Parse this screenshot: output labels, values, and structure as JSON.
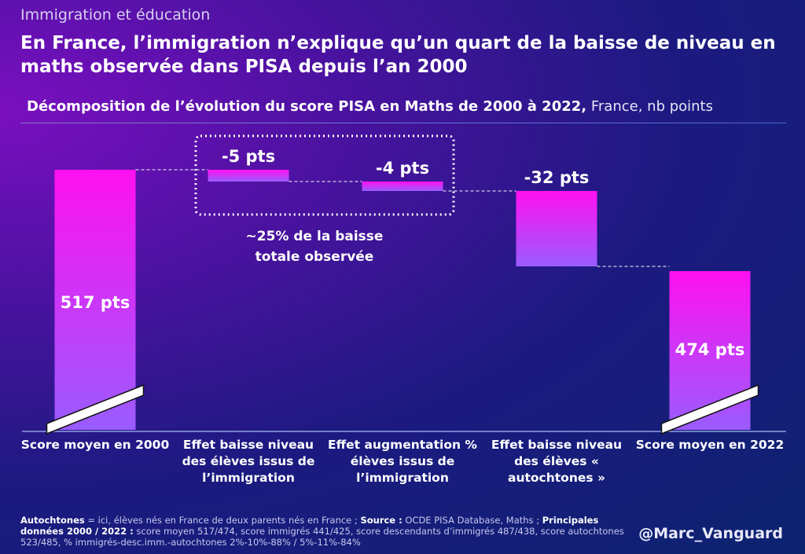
{
  "header": {
    "kicker": "Immigration et éducation",
    "title": "En France, l’immigration n’explique qu’un quart de la baisse de niveau en maths observée dans PISA depuis l’an 2000"
  },
  "chart_data": {
    "type": "waterfall",
    "title": "Décomposition de l’évolution du score PISA en Maths de 2000 à 2022,",
    "title_suffix": "France, nb points",
    "categories": [
      "Score moyen en 2000",
      "Effet baisse niveau des élèves issus de l’immigration",
      "Effet augmentation % élèves issus de l’immigration",
      "Effet baisse niveau des élèves « autochtones »",
      "Score moyen en 2022"
    ],
    "values": [
      517,
      -5,
      -4,
      -32,
      474
    ],
    "kinds": [
      "total",
      "delta",
      "delta",
      "delta",
      "total"
    ],
    "data_labels": [
      "517 pts",
      "-5 pts",
      "-4 pts",
      "-32 pts",
      "474 pts"
    ],
    "annotation": {
      "line1": "~25% de la baisse",
      "line2": "totale observée"
    },
    "axis_break": true,
    "colors": {
      "bar_top": "#ff10f0",
      "bar_bottom": "#9a5cff",
      "connector": "#d0d0e8"
    }
  },
  "footer": {
    "note_b1": "Autochtones",
    "note_t1": " = ici, élèves nés en France de deux parents nés en France ; ",
    "note_b2": "Source :",
    "note_t2": " OCDE PISA Database, Maths ; ",
    "note_b3": "Principales données 2000 / 2022 :",
    "note_t3": " score moyen 517/474, score immigrés 441/425, score descendants d’immigrés 487/438, score autochtones 523/485, % immigrés-desc.imm.-autochtones 2%-10%-88% / 5%-11%-84%",
    "credit": "@Marc_Vanguard"
  }
}
